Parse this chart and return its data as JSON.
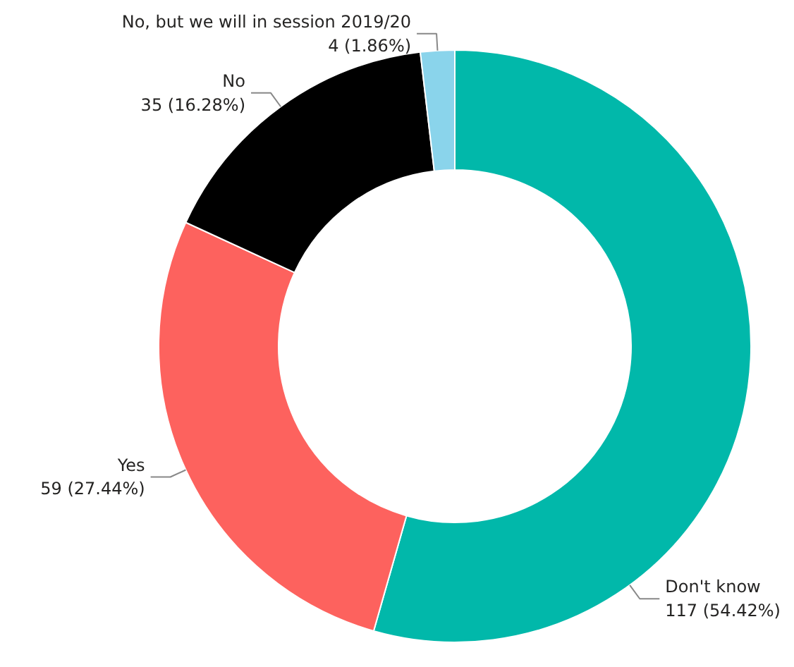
{
  "chart_data": {
    "type": "donut",
    "categories": [
      "Don't know",
      "Yes",
      "No",
      "No, but we will in session 2019/20"
    ],
    "values": [
      117,
      59,
      35,
      4
    ],
    "colors": [
      "#01b8aa",
      "#fd625e",
      "#000000",
      "#8ad4eb"
    ],
    "value_labels": [
      "117 (54.42%)",
      "59 (27.44%)",
      "35 (16.28%)",
      "4 (1.86%)"
    ]
  }
}
